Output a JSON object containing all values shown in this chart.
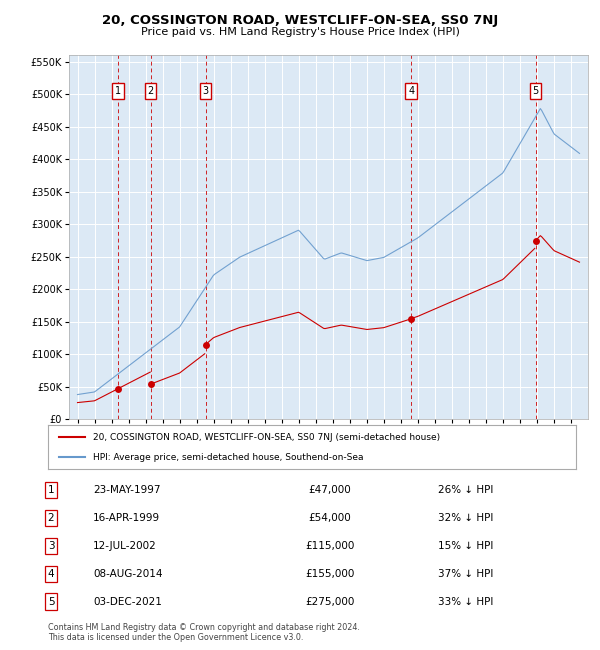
{
  "title": "20, COSSINGTON ROAD, WESTCLIFF-ON-SEA, SS0 7NJ",
  "subtitle": "Price paid vs. HM Land Registry's House Price Index (HPI)",
  "footer": "Contains HM Land Registry data © Crown copyright and database right 2024.\nThis data is licensed under the Open Government Licence v3.0.",
  "legend_line1": "20, COSSINGTON ROAD, WESTCLIFF-ON-SEA, SS0 7NJ (semi-detached house)",
  "legend_line2": "HPI: Average price, semi-detached house, Southend-on-Sea",
  "sales": [
    {
      "num": 1,
      "date_label": "23-MAY-1997",
      "year": 1997.38,
      "price": 47000,
      "hpi_pct": "26% ↓ HPI"
    },
    {
      "num": 2,
      "date_label": "16-APR-1999",
      "year": 1999.29,
      "price": 54000,
      "hpi_pct": "32% ↓ HPI"
    },
    {
      "num": 3,
      "date_label": "12-JUL-2002",
      "year": 2002.53,
      "price": 115000,
      "hpi_pct": "15% ↓ HPI"
    },
    {
      "num": 4,
      "date_label": "08-AUG-2014",
      "year": 2014.61,
      "price": 155000,
      "hpi_pct": "37% ↓ HPI"
    },
    {
      "num": 5,
      "date_label": "03-DEC-2021",
      "year": 2021.92,
      "price": 275000,
      "hpi_pct": "33% ↓ HPI"
    }
  ],
  "sale_color": "#cc0000",
  "hpi_color": "#6699cc",
  "plot_bg": "#dce9f5",
  "grid_color": "#ffffff",
  "ylim": [
    0,
    560000
  ],
  "yticks": [
    0,
    50000,
    100000,
    150000,
    200000,
    250000,
    300000,
    350000,
    400000,
    450000,
    500000,
    550000
  ],
  "xlim": [
    1994.5,
    2025.0
  ],
  "xticks": [
    1995,
    1996,
    1997,
    1998,
    1999,
    2000,
    2001,
    2002,
    2003,
    2004,
    2005,
    2006,
    2007,
    2008,
    2009,
    2010,
    2011,
    2012,
    2013,
    2014,
    2015,
    2016,
    2017,
    2018,
    2019,
    2020,
    2021,
    2022,
    2023,
    2024
  ]
}
